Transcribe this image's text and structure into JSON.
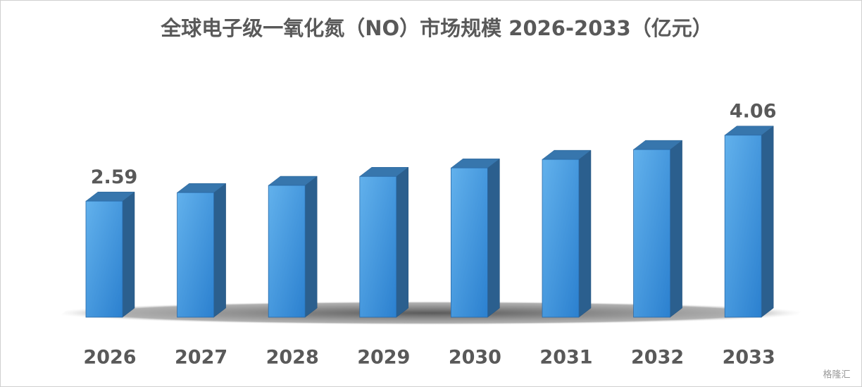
{
  "chart_data": {
    "type": "bar3d",
    "title": "全球电子级一氧化氮（NO）市场规模 2026-2033（亿元）",
    "categories": [
      "2026",
      "2027",
      "2028",
      "2029",
      "2030",
      "2031",
      "2032",
      "2033"
    ],
    "values": [
      2.59,
      2.78,
      2.94,
      3.14,
      3.33,
      3.52,
      3.74,
      4.06
    ],
    "value_labels": [
      "2.59",
      null,
      null,
      null,
      null,
      null,
      null,
      "4.06"
    ],
    "color": "#3d95dc"
  },
  "watermark": "格隆汇"
}
